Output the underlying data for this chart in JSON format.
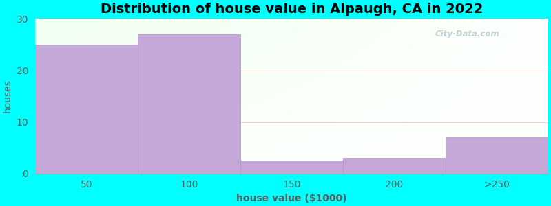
{
  "title": "Distribution of house value in Alpaugh, CA in 2022",
  "xlabel": "house value ($1000)",
  "ylabel": "houses",
  "categories": [
    "50",
    "100",
    "150",
    "200",
    ">250"
  ],
  "values": [
    25,
    27,
    2.5,
    3,
    7
  ],
  "bar_color": "#C4A8D8",
  "bar_edgecolor": "#B090C8",
  "ylim": [
    0,
    30
  ],
  "yticks": [
    0,
    10,
    20,
    30
  ],
  "background_color": "#00FFFF",
  "tick_color": "#5a6060",
  "label_color": "#5a6060",
  "title_fontsize": 14,
  "axis_label_fontsize": 10,
  "tick_fontsize": 10,
  "grid_color": "#e8ffe8",
  "watermark": "City-Data.com"
}
